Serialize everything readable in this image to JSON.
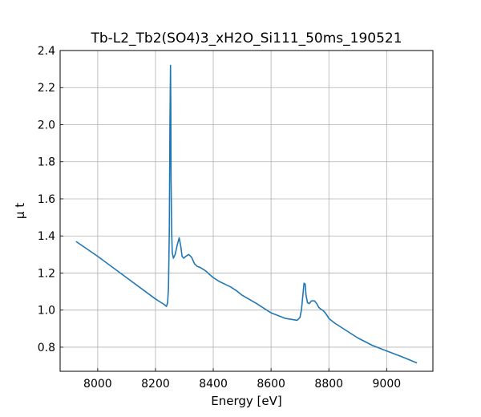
{
  "chart_data": {
    "type": "line",
    "title": "Tb-L2_Tb2(SO4)3_xH2O_Si111_50ms_190521",
    "xlabel": "Energy [eV]",
    "ylabel": "μ t",
    "xlim": [
      7870,
      9160
    ],
    "ylim": [
      0.67,
      2.4
    ],
    "x_ticks": [
      8000,
      8200,
      8400,
      8600,
      8800,
      9000
    ],
    "y_ticks": [
      0.8,
      1.0,
      1.2,
      1.4,
      1.6,
      1.8,
      2.0,
      2.2,
      2.4
    ],
    "x_tick_labels": [
      "8000",
      "8200",
      "8400",
      "8600",
      "8800",
      "9000"
    ],
    "y_tick_labels": [
      "0.8",
      "1.0",
      "1.2",
      "1.4",
      "1.6",
      "1.8",
      "2.0",
      "2.2",
      "2.4"
    ],
    "grid": true,
    "line_color": "#1f77b4",
    "series": [
      {
        "x": [
          7925,
          8000,
          8100,
          8200,
          8230,
          8238,
          8242,
          8245,
          8248,
          8250,
          8252,
          8253,
          8254,
          8256,
          8258,
          8262,
          8268,
          8275,
          8282,
          8288,
          8292,
          8298,
          8305,
          8315,
          8325,
          8335,
          8345,
          8355,
          8365,
          8375,
          8385,
          8400,
          8420,
          8440,
          8460,
          8480,
          8500,
          8550,
          8600,
          8650,
          8690,
          8700,
          8705,
          8710,
          8714,
          8718,
          8721,
          8726,
          8732,
          8740,
          8750,
          8758,
          8765,
          8772,
          8778,
          8785,
          8792,
          8800,
          8820,
          8840,
          8860,
          8880,
          8900,
          8950,
          9000,
          9050,
          9105
        ],
        "y": [
          1.37,
          1.29,
          1.175,
          1.06,
          1.03,
          1.02,
          1.04,
          1.12,
          1.45,
          2.0,
          2.32,
          2.1,
          1.7,
          1.42,
          1.31,
          1.28,
          1.3,
          1.35,
          1.39,
          1.34,
          1.29,
          1.28,
          1.29,
          1.3,
          1.285,
          1.25,
          1.235,
          1.23,
          1.22,
          1.21,
          1.195,
          1.175,
          1.155,
          1.14,
          1.125,
          1.105,
          1.08,
          1.035,
          0.985,
          0.955,
          0.945,
          0.96,
          1.0,
          1.08,
          1.145,
          1.14,
          1.08,
          1.04,
          1.035,
          1.05,
          1.05,
          1.035,
          1.015,
          1.005,
          1.0,
          0.99,
          0.975,
          0.955,
          0.93,
          0.91,
          0.89,
          0.87,
          0.85,
          0.81,
          0.78,
          0.75,
          0.715
        ]
      }
    ]
  }
}
